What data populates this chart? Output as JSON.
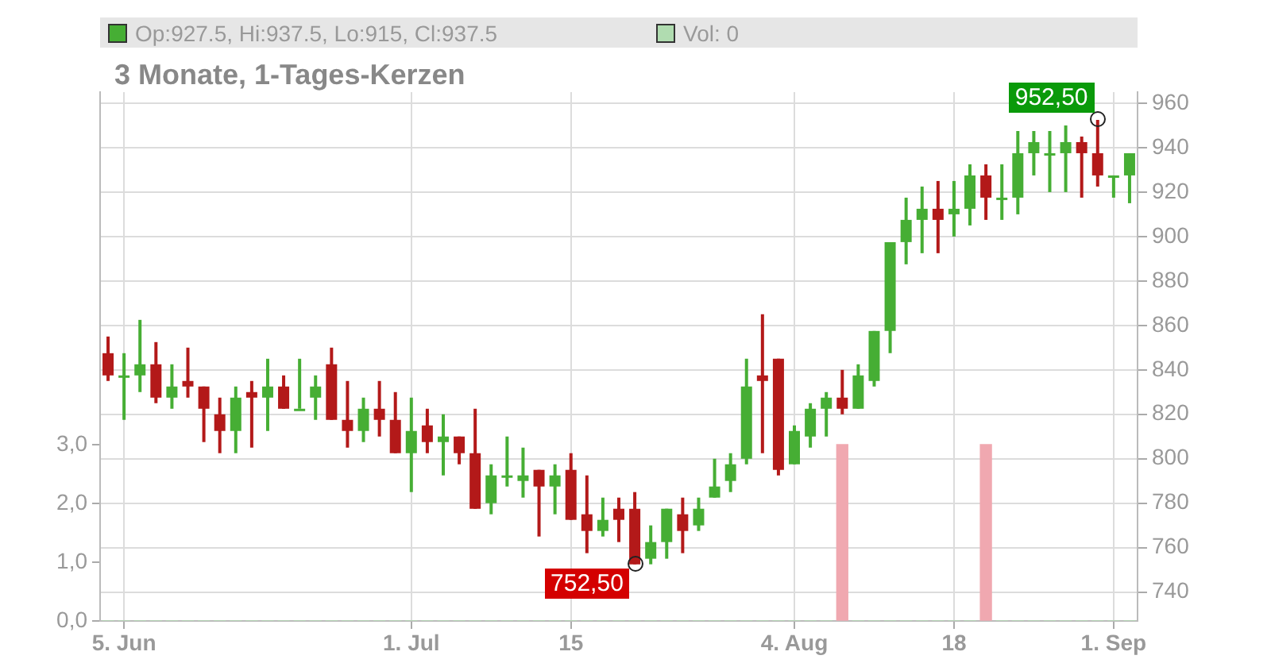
{
  "chart_data": {
    "type": "candlestick",
    "title": "3 Monate, 1-Tages-Kerzen",
    "annotations": [
      "Op:927.5, Hi:937.5, Lo:915, Cl:937.5",
      "Vol: 0",
      "952,50",
      "752,50"
    ],
    "categories": [
      null,
      "5. Jun",
      null,
      null,
      null,
      null,
      null,
      null,
      null,
      null,
      null,
      null,
      null,
      null,
      null,
      null,
      null,
      null,
      null,
      "1. Jul",
      null,
      null,
      null,
      null,
      null,
      null,
      null,
      null,
      null,
      "15",
      null,
      null,
      null,
      null,
      null,
      null,
      null,
      null,
      null,
      null,
      null,
      null,
      null,
      "4. Aug",
      null,
      null,
      null,
      null,
      null,
      null,
      null,
      null,
      null,
      "18",
      null,
      null,
      null,
      null,
      null,
      null,
      null,
      null,
      null,
      "1. Sep",
      null
    ],
    "ohlc": [
      [
        847.5,
        855,
        835,
        837.5
      ],
      [
        837.5,
        847.5,
        817.5,
        837.5
      ],
      [
        837.5,
        862.5,
        830,
        842.5
      ],
      [
        842.5,
        852.5,
        825,
        827.5
      ],
      [
        827.5,
        842.5,
        822.5,
        832.5
      ],
      [
        835,
        850,
        827.5,
        832.5
      ],
      [
        832.5,
        832.5,
        807.5,
        822.5
      ],
      [
        820,
        827.5,
        802.5,
        812.5
      ],
      [
        812.5,
        832.5,
        802.5,
        827.5
      ],
      [
        830,
        835,
        805,
        827.5
      ],
      [
        827.5,
        845,
        812.5,
        832.5
      ],
      [
        832.5,
        837.5,
        822.5,
        822.5
      ],
      [
        822.5,
        845,
        822.5,
        822.5
      ],
      [
        827.5,
        837.5,
        817.5,
        832.5
      ],
      [
        842.5,
        850,
        817.5,
        817.5
      ],
      [
        817.5,
        835,
        805,
        812.5
      ],
      [
        812.5,
        827.5,
        807.5,
        822.5
      ],
      [
        822.5,
        835,
        810,
        817.5
      ],
      [
        817.5,
        830,
        802.5,
        802.5
      ],
      [
        802.5,
        827.5,
        785,
        812.5
      ],
      [
        815,
        822.5,
        802.5,
        807.5
      ],
      [
        807.5,
        820,
        792.5,
        810
      ],
      [
        810,
        810,
        797.5,
        802.5
      ],
      [
        802.5,
        822.5,
        777.5,
        777.5
      ],
      [
        780,
        797.5,
        775,
        792.5
      ],
      [
        792.5,
        810,
        787.5,
        792.5
      ],
      [
        790,
        805,
        782.5,
        792.5
      ],
      [
        795,
        795,
        765,
        787.5
      ],
      [
        787.5,
        797.5,
        775,
        792.5
      ],
      [
        795,
        802.5,
        772.5,
        772.5
      ],
      [
        775,
        792.5,
        757.5,
        767.5
      ],
      [
        767.5,
        782.5,
        765,
        772.5
      ],
      [
        777.5,
        782.5,
        762.5,
        772.5
      ],
      [
        777.5,
        785,
        752.5,
        752.5
      ],
      [
        755,
        770,
        752.5,
        762.5
      ],
      [
        762.5,
        777.5,
        755,
        777.5
      ],
      [
        775,
        782.5,
        757.5,
        767.5
      ],
      [
        770,
        782.5,
        767.5,
        777.5
      ],
      [
        782.5,
        800,
        782.5,
        787.5
      ],
      [
        790,
        802.5,
        785,
        797.5
      ],
      [
        800,
        845,
        797.5,
        832.5
      ],
      [
        837.5,
        865,
        802.5,
        835
      ],
      [
        845,
        845,
        792.5,
        795
      ],
      [
        797.5,
        815,
        797.5,
        812.5
      ],
      [
        810,
        825,
        805,
        822.5
      ],
      [
        822.5,
        830,
        810,
        827.5
      ],
      [
        827.5,
        840,
        820,
        822.5
      ],
      [
        822.5,
        842.5,
        822.5,
        837.5
      ],
      [
        835,
        857.5,
        832.5,
        857.5
      ],
      [
        857.5,
        897.5,
        847.5,
        897.5
      ],
      [
        897.5,
        917.5,
        887.5,
        907.5
      ],
      [
        907.5,
        922.5,
        892.5,
        912.5
      ],
      [
        912.5,
        925,
        892.5,
        907.5
      ],
      [
        910,
        925,
        900,
        912.5
      ],
      [
        912.5,
        932.5,
        905,
        927.5
      ],
      [
        927.5,
        932.5,
        907.5,
        917.5
      ],
      [
        917.5,
        932.5,
        907.5,
        917.5
      ],
      [
        917.5,
        947.5,
        910,
        937.5
      ],
      [
        937.5,
        947.5,
        927.5,
        942.5
      ],
      [
        937.5,
        947.5,
        920,
        937.5
      ],
      [
        937.5,
        950,
        920,
        942.5
      ],
      [
        942.5,
        945,
        917.5,
        937.5
      ],
      [
        937.5,
        952.5,
        922.5,
        927.5
      ],
      [
        927.5,
        927.5,
        917.5,
        927.5
      ],
      [
        927.5,
        937.5,
        915,
        937.5
      ]
    ],
    "colors": [
      "#b31919",
      "#46ae34",
      "#46ae34",
      "#b31919",
      "#46ae34",
      "#b31919",
      "#b31919",
      "#b31919",
      "#46ae34",
      "#b31919",
      "#46ae34",
      "#b31919",
      "#46ae34",
      "#46ae34",
      "#b31919",
      "#b31919",
      "#46ae34",
      "#b31919",
      "#b31919",
      "#46ae34",
      "#b31919",
      "#46ae34",
      "#b31919",
      "#b31919",
      "#46ae34",
      "#46ae34",
      "#46ae34",
      "#b31919",
      "#46ae34",
      "#b31919",
      "#b31919",
      "#46ae34",
      "#b31919",
      "#b31919",
      "#46ae34",
      "#46ae34",
      "#b31919",
      "#46ae34",
      "#46ae34",
      "#46ae34",
      "#46ae34",
      "#b31919",
      "#b31919",
      "#46ae34",
      "#46ae34",
      "#46ae34",
      "#b31919",
      "#46ae34",
      "#46ae34",
      "#46ae34",
      "#46ae34",
      "#46ae34",
      "#b31919",
      "#46ae34",
      "#46ae34",
      "#b31919",
      "#46ae34",
      "#46ae34",
      "#46ae34",
      "#46ae34",
      "#46ae34",
      "#b31919",
      "#b31919",
      "#46ae34",
      "#46ae34"
    ],
    "series": [
      {
        "type": "bar",
        "axis": "y2",
        "values": [
          0,
          0,
          0,
          0,
          0,
          0,
          0,
          0,
          0,
          0,
          0,
          0,
          0,
          0,
          0,
          0,
          0,
          0,
          0,
          0,
          0,
          0,
          0,
          0,
          0,
          0,
          0,
          0,
          0,
          0,
          0,
          0,
          0,
          0,
          0,
          0,
          0,
          0,
          0,
          0,
          0,
          0,
          0,
          0,
          0,
          0,
          3.0,
          0,
          0,
          0,
          0,
          0,
          0,
          0,
          0,
          3.0,
          0,
          0,
          0,
          0,
          0,
          0,
          0,
          0,
          0
        ],
        "colors": [
          "#b0dcb0",
          "#b0dcb0",
          "#b0dcb0",
          "#b0dcb0",
          "#b0dcb0",
          "#b0dcb0",
          "#b0dcb0",
          "#b0dcb0",
          "#b0dcb0",
          "#b0dcb0",
          "#b0dcb0",
          "#b0dcb0",
          "#b0dcb0",
          "#b0dcb0",
          "#b0dcb0",
          "#b0dcb0",
          "#b0dcb0",
          "#b0dcb0",
          "#b0dcb0",
          "#b0dcb0",
          "#b0dcb0",
          "#b0dcb0",
          "#b0dcb0",
          "#b0dcb0",
          "#b0dcb0",
          "#b0dcb0",
          "#b0dcb0",
          "#b0dcb0",
          "#b0dcb0",
          "#b0dcb0",
          "#b0dcb0",
          "#b0dcb0",
          "#b0dcb0",
          "#b0dcb0",
          "#b0dcb0",
          "#b0dcb0",
          "#b0dcb0",
          "#b0dcb0",
          "#b0dcb0",
          "#b0dcb0",
          "#b0dcb0",
          "#b0dcb0",
          "#b0dcb0",
          "#b0dcb0",
          "#b0dcb0",
          "#b0dcb0",
          "#f0a8b0",
          "#b0dcb0",
          "#b0dcb0",
          "#b0dcb0",
          "#b0dcb0",
          "#b0dcb0",
          "#b0dcb0",
          "#b0dcb0",
          "#b0dcb0",
          "#f0a8b0",
          "#b0dcb0",
          "#b0dcb0",
          "#b0dcb0",
          "#b0dcb0",
          "#b0dcb0",
          "#b0dcb0",
          "#b0dcb0",
          "#b0dcb0",
          "#b0dcb0"
        ]
      }
    ],
    "ylim": [
      727,
      965
    ],
    "yticks": [
      740,
      760,
      780,
      800,
      820,
      840,
      860,
      880,
      900,
      920,
      940,
      960
    ],
    "y2lim": [
      0,
      9
    ],
    "y2ticks": [
      {
        "value": 0,
        "label": "0,0"
      },
      {
        "value": 1,
        "label": "1,0"
      },
      {
        "value": 2,
        "label": "2,0"
      },
      {
        "value": 3,
        "label": "3,0"
      }
    ],
    "grid": true,
    "legend": false
  }
}
